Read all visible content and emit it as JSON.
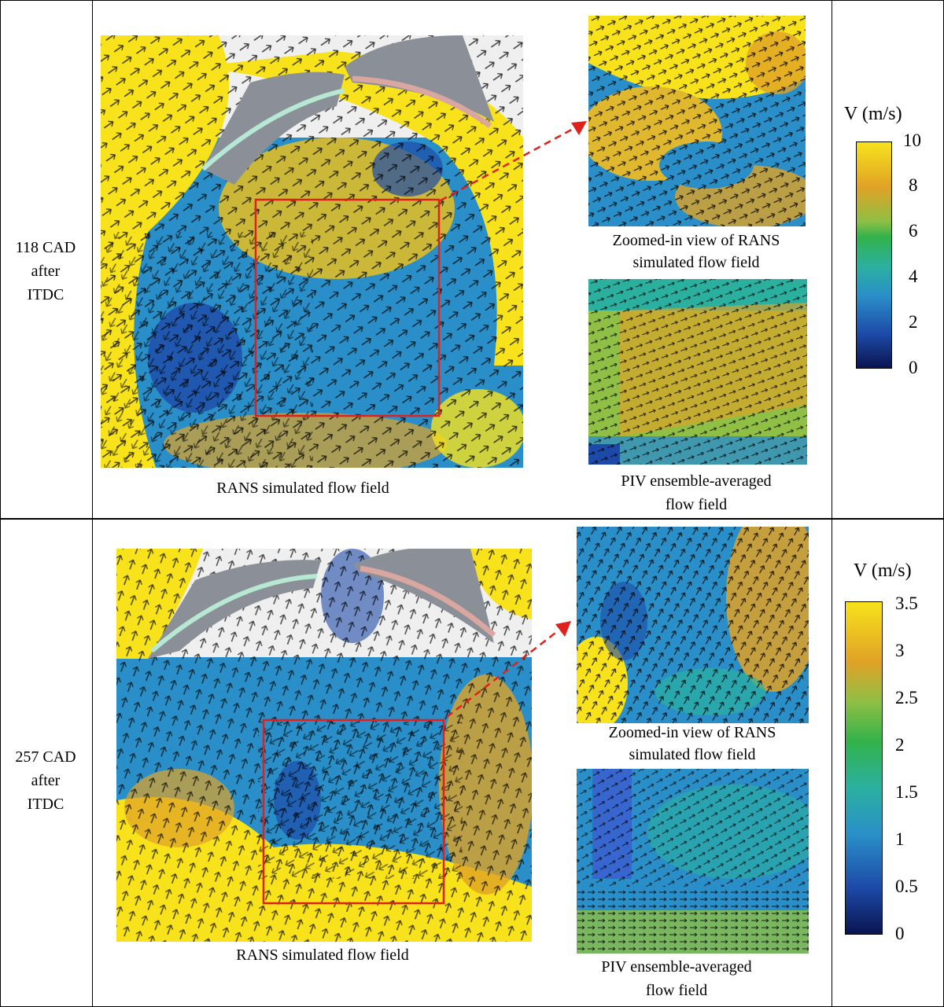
{
  "rows": [
    {
      "label_lines": [
        "118 CAD",
        "after",
        "ITDC"
      ],
      "main_caption": "RANS simulated flow field",
      "zoom_caption_lines": [
        "Zoomed-in view of RANS",
        "simulated flow field"
      ],
      "piv_caption_lines": [
        "PIV ensemble-averaged",
        "flow field"
      ],
      "colorbar": {
        "title": "V (m/s)",
        "ticks": [
          "10",
          "8",
          "6",
          "4",
          "2",
          "0"
        ],
        "min": 0,
        "max": 10
      }
    },
    {
      "label_lines": [
        "257 CAD",
        "after",
        "ITDC"
      ],
      "main_caption": "RANS simulated flow field",
      "zoom_caption_lines": [
        "Zoomed-in view of RANS",
        "simulated flow field"
      ],
      "piv_caption_lines": [
        "PIV ensemble-averaged",
        "flow field"
      ],
      "colorbar": {
        "title": "V (m/s)",
        "ticks": [
          "3.5",
          "3",
          "2.5",
          "2",
          "1.5",
          "1",
          "0.5",
          "0"
        ],
        "min": 0,
        "max": 3.5
      }
    }
  ],
  "colors": {
    "colormap": [
      "#0a1450",
      "#1d4aa8",
      "#2a8fc8",
      "#2bb0a0",
      "#33b24a",
      "#8fbf45",
      "#e0a226",
      "#f7e21c"
    ],
    "highlight_box": "#e0201c",
    "arrows": "#000000"
  }
}
